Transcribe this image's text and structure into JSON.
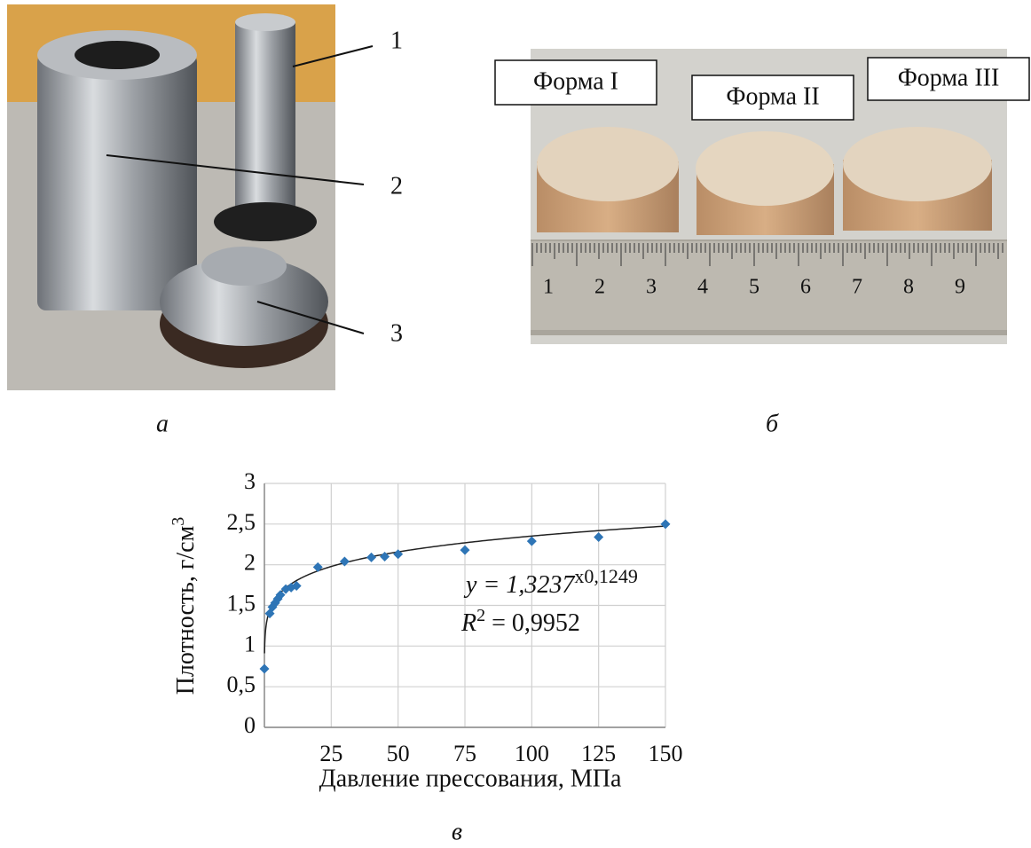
{
  "panels": {
    "a": {
      "label": "а",
      "callouts": [
        "1",
        "2",
        "3"
      ]
    },
    "b": {
      "label": "б",
      "forms": [
        "Форма I",
        "Форма II",
        "Форма III"
      ],
      "ruler": [
        "1",
        "2",
        "3",
        "4",
        "5",
        "6",
        "7",
        "8",
        "9"
      ]
    },
    "c": {
      "label": "в"
    }
  },
  "chart_data": {
    "type": "scatter",
    "x_label": "Давление прессования, МПа",
    "y_label": {
      "text": "Плотность, г/см",
      "superscript": "3"
    },
    "x": [
      0,
      2,
      3,
      4,
      5,
      6,
      8,
      10,
      12,
      20,
      30,
      40,
      45,
      50,
      75,
      100,
      125,
      150
    ],
    "values": [
      0.72,
      1.4,
      1.48,
      1.53,
      1.58,
      1.63,
      1.7,
      1.72,
      1.74,
      1.97,
      2.04,
      2.09,
      2.1,
      2.13,
      2.18,
      2.29,
      2.34,
      2.5
    ],
    "color": "#2e75b6",
    "trendline": {
      "type": "power",
      "coefficient": 1.3237,
      "exponent": 0.1249,
      "color": "#222222"
    },
    "equation": {
      "text": "y = 1,3237",
      "superscript": "x0,1249"
    },
    "r_squared": {
      "text": "R",
      "superscript": "2",
      "suffix": " = 0,9952"
    },
    "xlim": [
      0,
      150
    ],
    "xticks": [
      25,
      50,
      75,
      100,
      125,
      150
    ],
    "ylim": [
      0,
      3
    ],
    "yticks": [
      0,
      {
        "value": 0.5,
        "label": "0,5"
      },
      1,
      {
        "value": 1.5,
        "label": "1,5"
      },
      2,
      {
        "value": 2.5,
        "label": "2,5"
      },
      3
    ],
    "grid": true
  }
}
